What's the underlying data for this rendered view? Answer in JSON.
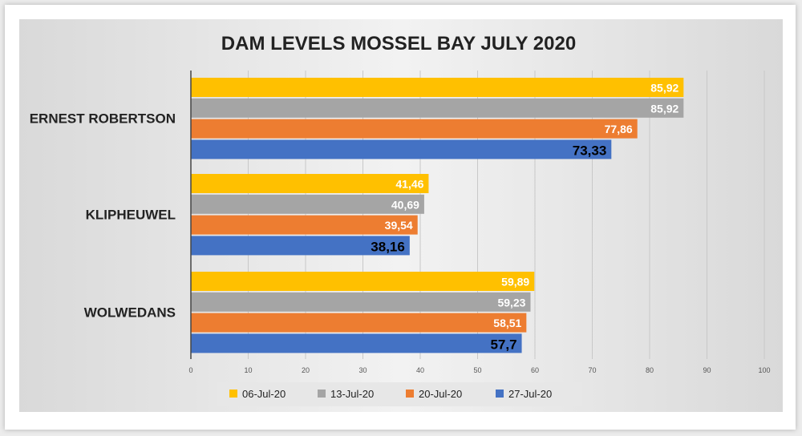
{
  "chart_data": {
    "type": "bar",
    "orientation": "horizontal",
    "title": "DAM LEVELS MOSSEL BAY JULY 2020",
    "categories": [
      "ERNEST ROBERTSON",
      "KLIPHEUWEL",
      "WOLWEDANS"
    ],
    "series": [
      {
        "name": "06-Jul-20",
        "color": "#ffc000",
        "values": [
          85.92,
          41.46,
          59.89
        ],
        "labels": [
          "85,92",
          "41,46",
          "59,89"
        ]
      },
      {
        "name": "13-Jul-20",
        "color": "#a5a5a5",
        "values": [
          85.92,
          40.69,
          59.23
        ],
        "labels": [
          "85,92",
          "40,69",
          "59,23"
        ]
      },
      {
        "name": "20-Jul-20",
        "color": "#ed7d31",
        "values": [
          77.86,
          39.54,
          58.51
        ],
        "labels": [
          "77,86",
          "39,54",
          "58,51"
        ]
      },
      {
        "name": "27-Jul-20",
        "color": "#4472c4",
        "values": [
          73.33,
          38.16,
          57.7
        ],
        "labels": [
          "73,33",
          "38,16",
          "57,7"
        ]
      }
    ],
    "xlim": [
      0,
      100
    ],
    "xticks": [
      0,
      10,
      20,
      30,
      40,
      50,
      60,
      70,
      80,
      90,
      100
    ],
    "grid": true,
    "legend_position": "bottom"
  }
}
